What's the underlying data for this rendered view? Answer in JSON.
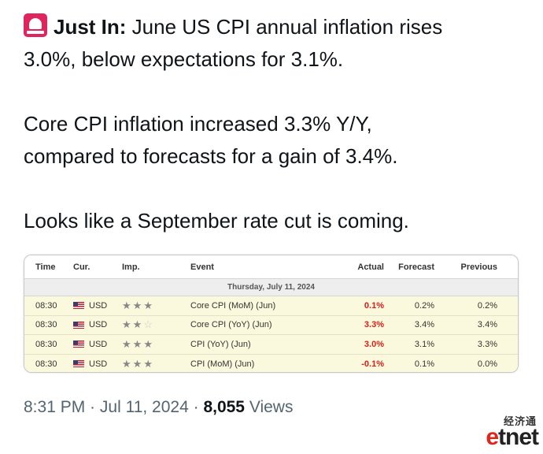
{
  "tweet": {
    "headline_bold": "Just In:",
    "headline_rest": " June US CPI annual inflation rises",
    "line2": "3.0%, below expectations for 3.1%.",
    "line3": "Core CPI inflation increased 3.3% Y/Y,",
    "line4": "compared to forecasts for a gain of 3.4%.",
    "line5": "Looks like a September rate cut is coming.",
    "icon": "siren-icon"
  },
  "calendar": {
    "headers": {
      "time": "Time",
      "cur": "Cur.",
      "imp": "Imp.",
      "event": "Event",
      "actual": "Actual",
      "forecast": "Forecast",
      "previous": "Previous"
    },
    "date_label": "Thursday, July 11, 2024",
    "rows": [
      {
        "time": "08:30",
        "cur": "USD",
        "importance": 3,
        "event": "Core CPI (MoM) (Jun)",
        "actual": "0.1%",
        "forecast": "0.2%",
        "previous": "0.2%"
      },
      {
        "time": "08:30",
        "cur": "USD",
        "importance": 2,
        "event": "Core CPI (YoY) (Jun)",
        "actual": "3.3%",
        "forecast": "3.4%",
        "previous": "3.4%"
      },
      {
        "time": "08:30",
        "cur": "USD",
        "importance": 3,
        "event": "CPI (YoY) (Jun)",
        "actual": "3.0%",
        "forecast": "3.1%",
        "previous": "3.3%"
      },
      {
        "time": "08:30",
        "cur": "USD",
        "importance": 3,
        "event": "CPI (MoM) (Jun)",
        "actual": "-0.1%",
        "forecast": "0.1%",
        "previous": "0.0%"
      }
    ],
    "colors": {
      "actual": "#d91e18",
      "row_highlight": "#fbf9dd"
    }
  },
  "meta": {
    "time": "8:31 PM",
    "sep1": " · ",
    "date": "Jul 11, 2024",
    "sep2": " · ",
    "views_count": "8,055",
    "views_label": " Views"
  },
  "watermark": {
    "cn_text": "经济通",
    "brand_e": "e",
    "brand_rest": "tnet"
  }
}
